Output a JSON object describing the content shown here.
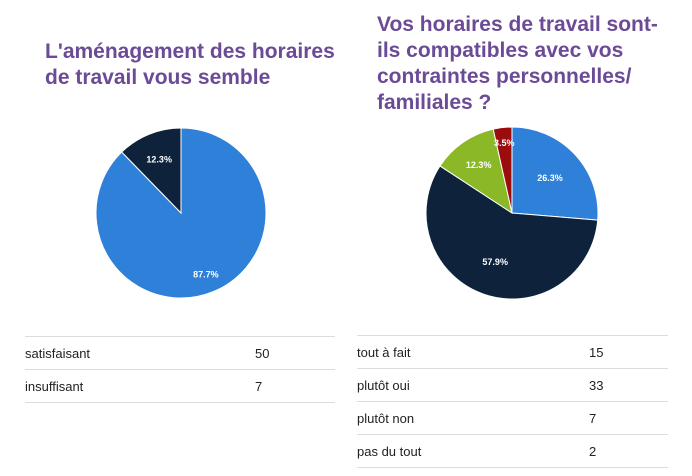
{
  "chart_data": [
    {
      "type": "pie",
      "title": "L'aménagement des horaires de travail vous semble",
      "categories": [
        "satisfaisant",
        "insuffisant"
      ],
      "values": [
        50,
        7
      ],
      "percent_labels": [
        "87.7%",
        "12.3%"
      ],
      "colors": [
        "#2f80d8",
        "#0e233b"
      ]
    },
    {
      "type": "pie",
      "title": "Vos horaires de travail sont-ils compatibles avec vos contraintes personnelles/ familiales ?",
      "categories": [
        "tout à fait",
        "plutôt oui",
        "plutôt non",
        "pas du tout"
      ],
      "values": [
        15,
        33,
        7,
        2
      ],
      "percent_labels": [
        "26.3%",
        "57.9%",
        "12.3%",
        "3.5%"
      ],
      "colors": [
        "#2f80d8",
        "#0e233b",
        "#8ab827",
        "#9b0d0d"
      ]
    }
  ]
}
